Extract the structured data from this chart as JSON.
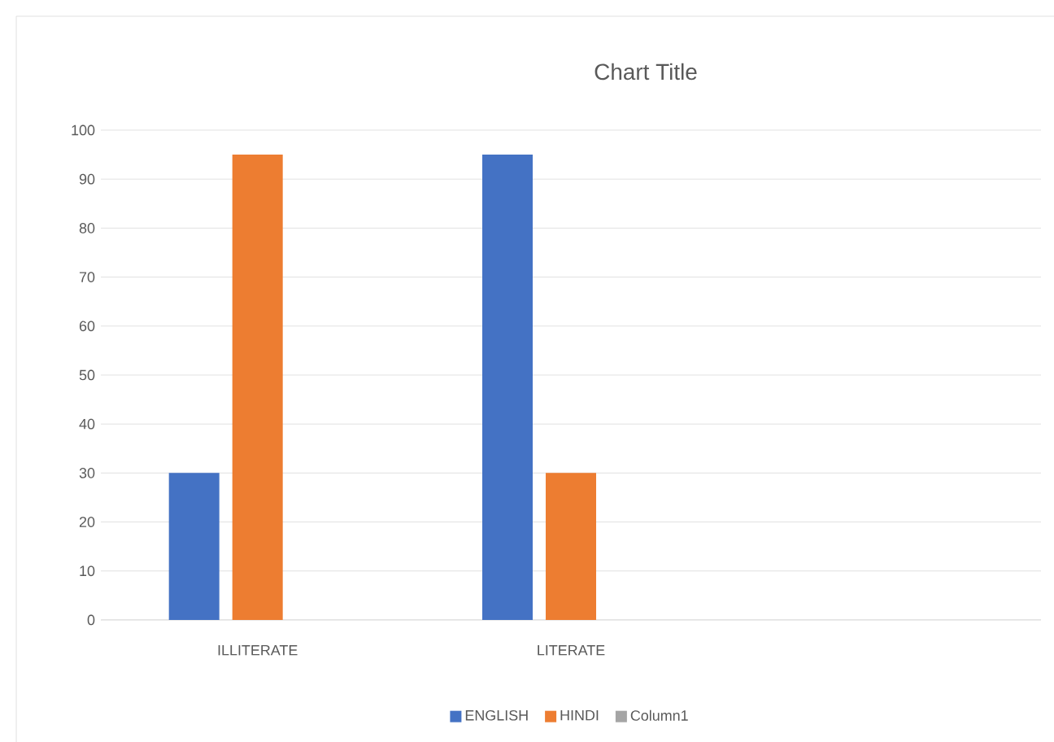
{
  "chart_data": {
    "type": "bar",
    "title": "Chart Title",
    "categories": [
      "ILLITERATE",
      "LITERATE",
      null
    ],
    "series": [
      {
        "name": "ENGLISH",
        "color": "#4472c4",
        "values": [
          30,
          95,
          null
        ]
      },
      {
        "name": "HINDI",
        "color": "#ed7d31",
        "values": [
          95,
          30,
          null
        ]
      },
      {
        "name": "Column1",
        "color": "#a5a5a5",
        "values": [
          null,
          null,
          null
        ]
      }
    ],
    "ylim": [
      0,
      100
    ],
    "yticks": [
      0,
      10,
      20,
      30,
      40,
      50,
      60,
      70,
      80,
      90,
      100
    ],
    "grid": "y",
    "legend": "bottom"
  }
}
